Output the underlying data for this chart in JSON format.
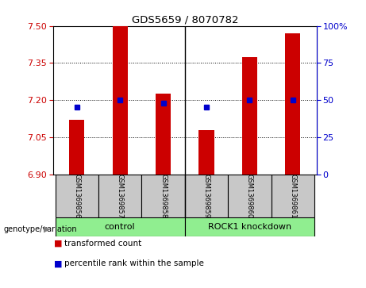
{
  "title": "GDS5659 / 8070782",
  "samples": [
    "GSM1369856",
    "GSM1369857",
    "GSM1369858",
    "GSM1369859",
    "GSM1369860",
    "GSM1369861"
  ],
  "bar_values": [
    7.12,
    7.5,
    7.225,
    7.08,
    7.375,
    7.47
  ],
  "percentile_values": [
    45,
    50,
    48,
    45,
    50,
    50
  ],
  "y_min": 6.9,
  "y_max": 7.5,
  "y_ticks_left": [
    6.9,
    7.05,
    7.2,
    7.35,
    7.5
  ],
  "y_ticks_right": [
    0,
    25,
    50,
    75,
    100
  ],
  "bar_color": "#cc0000",
  "dot_color": "#0000cc",
  "sample_box_color": "#c8c8c8",
  "control_color": "#90ee90",
  "knockdown_color": "#90ee90",
  "legend_items": [
    {
      "label": "transformed count",
      "color": "#cc0000"
    },
    {
      "label": "percentile rank within the sample",
      "color": "#0000cc"
    }
  ]
}
